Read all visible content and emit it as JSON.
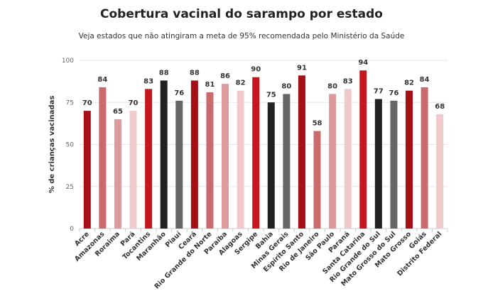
{
  "chart_data": {
    "type": "bar",
    "title": "Cobertura vacinal do sarampo por estado",
    "subtitle": "Veja estados que não atingiram a meta de 95% recomendada pelo Ministério da Saúde",
    "xlabel": "",
    "ylabel": "% de crianças vacinadas",
    "ylim": [
      0,
      100
    ],
    "yticks": [
      0,
      25,
      50,
      75,
      100
    ],
    "grid": true,
    "categories": [
      "Acre",
      "Amazonas",
      "Roraima",
      "Pará",
      "Tocantins",
      "Maranhão",
      "Piauí",
      "Ceará",
      "Rio Grande do Norte",
      "Paraíba",
      "Alagoas",
      "Sergipe",
      "Bahia",
      "Minas Gerais",
      "Espírito Santo",
      "Rio de Janeiro",
      "São Paulo",
      "Paraná",
      "Santa Catarina",
      "Rio Grande do Sul",
      "Mato Grosso do Sul",
      "Mato Grosso",
      "Goiás",
      "Distrito Federal"
    ],
    "values": [
      70,
      84,
      65,
      70,
      83,
      88,
      76,
      88,
      81,
      86,
      82,
      90,
      75,
      80,
      91,
      58,
      80,
      83,
      94,
      77,
      76,
      82,
      84,
      68
    ],
    "colors": [
      "#a50f15",
      "#c96a6d",
      "#dd9a9c",
      "#f0c9ca",
      "#c8161e",
      "#222222",
      "#666666",
      "#a50f15",
      "#c96a6d",
      "#dd9a9c",
      "#f0c9ca",
      "#c8161e",
      "#222222",
      "#666666",
      "#a50f15",
      "#c96a6d",
      "#dd9a9c",
      "#f0c9ca",
      "#c8161e",
      "#222222",
      "#666666",
      "#a50f15",
      "#c96a6d",
      "#f0c9ca"
    ]
  }
}
